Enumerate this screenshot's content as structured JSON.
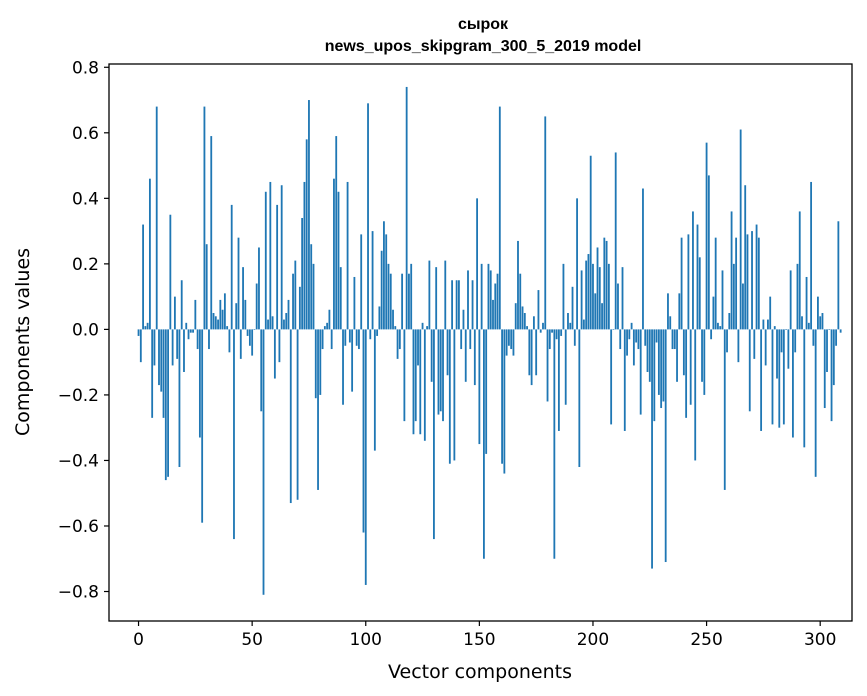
{
  "chart_data": {
    "type": "bar",
    "title": "сырок",
    "subtitle": "news_upos_skipgram_300_5_2019 model",
    "xlabel": "Vector components",
    "ylabel": "Components values",
    "xlim": [
      -13,
      314
    ],
    "ylim": [
      -0.89,
      0.81
    ],
    "xticks": [
      0,
      50,
      100,
      150,
      200,
      250,
      300
    ],
    "yticks": [
      -0.8,
      -0.6,
      -0.4,
      -0.2,
      0.0,
      0.2,
      0.4,
      0.6,
      0.8
    ],
    "ytick_labels": [
      "−0.8",
      "−0.6",
      "−0.4",
      "−0.2",
      "0.0",
      "0.2",
      "0.4",
      "0.6",
      "0.8"
    ],
    "bar_color": "#1f77b4",
    "grid": false,
    "values": [
      -0.02,
      -0.1,
      0.32,
      0.01,
      0.02,
      0.46,
      -0.27,
      -0.11,
      0.68,
      -0.17,
      -0.19,
      -0.27,
      -0.46,
      -0.45,
      0.35,
      -0.11,
      0.1,
      -0.09,
      -0.42,
      0.15,
      -0.13,
      0.02,
      -0.03,
      -0.01,
      -0.01,
      0.09,
      -0.06,
      -0.33,
      -0.59,
      0.68,
      0.26,
      -0.06,
      0.59,
      0.05,
      0.04,
      0.03,
      0.09,
      0.06,
      0.11,
      0.01,
      -0.07,
      0.38,
      -0.64,
      0.08,
      0.28,
      -0.09,
      0.19,
      0.09,
      -0.02,
      -0.05,
      -0.08,
      0.0,
      0.14,
      0.25,
      -0.25,
      -0.81,
      0.42,
      0.03,
      0.45,
      0.04,
      -0.15,
      0.38,
      -0.1,
      0.44,
      0.03,
      0.05,
      0.09,
      -0.53,
      0.17,
      0.21,
      -0.52,
      0.13,
      0.34,
      0.45,
      0.58,
      0.7,
      0.26,
      0.2,
      -0.21,
      -0.49,
      -0.2,
      -0.06,
      0.01,
      0.02,
      0.06,
      -0.06,
      0.46,
      0.59,
      0.42,
      0.19,
      -0.23,
      -0.05,
      0.45,
      -0.04,
      -0.19,
      0.16,
      -0.05,
      -0.06,
      0.29,
      -0.62,
      -0.78,
      0.69,
      -0.03,
      0.3,
      -0.37,
      -0.02,
      0.07,
      0.24,
      0.33,
      0.29,
      0.2,
      0.17,
      0.06,
      0.01,
      -0.09,
      -0.06,
      0.17,
      -0.28,
      0.74,
      0.17,
      0.2,
      -0.32,
      -0.28,
      -0.11,
      -0.32,
      0.02,
      -0.34,
      0.01,
      0.21,
      -0.16,
      -0.64,
      0.19,
      -0.26,
      -0.25,
      -0.28,
      0.21,
      -0.14,
      -0.41,
      0.15,
      -0.4,
      0.15,
      0.15,
      -0.06,
      0.06,
      -0.16,
      0.18,
      -0.06,
      0.15,
      -0.17,
      0.4,
      -0.35,
      0.2,
      -0.7,
      -0.38,
      0.2,
      0.18,
      0.09,
      0.14,
      0.17,
      0.68,
      -0.41,
      -0.44,
      -0.08,
      -0.05,
      -0.06,
      -0.08,
      0.08,
      0.27,
      0.17,
      0.07,
      0.05,
      0.01,
      -0.14,
      -0.17,
      0.04,
      -0.14,
      0.12,
      -0.01,
      0.02,
      0.65,
      -0.22,
      -0.06,
      -0.01,
      -0.7,
      -0.03,
      -0.31,
      -0.02,
      0.2,
      -0.23,
      0.05,
      0.02,
      0.13,
      -0.05,
      0.4,
      -0.42,
      0.18,
      0.03,
      0.21,
      0.23,
      0.53,
      0.2,
      0.11,
      0.25,
      0.19,
      0.08,
      0.28,
      0.27,
      0.2,
      -0.29,
      0.0,
      0.54,
      0.14,
      -0.06,
      0.19,
      -0.31,
      -0.08,
      -0.03,
      0.02,
      -0.11,
      -0.04,
      -0.06,
      -0.26,
      0.43,
      -0.05,
      -0.13,
      -0.16,
      -0.73,
      -0.28,
      -0.04,
      -0.2,
      -0.24,
      -0.22,
      -0.71,
      0.11,
      0.04,
      -0.06,
      -0.06,
      -0.16,
      0.11,
      0.28,
      -0.14,
      -0.27,
      0.29,
      -0.23,
      0.36,
      -0.4,
      0.32,
      0.22,
      -0.16,
      -0.2,
      0.57,
      0.47,
      -0.03,
      0.1,
      0.28,
      0.02,
      0.01,
      0.18,
      -0.49,
      -0.07,
      0.05,
      0.36,
      0.2,
      0.28,
      -0.1,
      0.61,
      0.14,
      0.44,
      0.29,
      -0.25,
      0.3,
      -0.09,
      0.32,
      0.28,
      -0.31,
      0.03,
      -0.11,
      0.03,
      0.1,
      -0.29,
      0.01,
      -0.15,
      -0.3,
      -0.07,
      -0.29,
      0.0,
      -0.12,
      0.18,
      -0.33,
      -0.07,
      0.2,
      0.36,
      0.04,
      -0.36,
      0.16,
      0.02,
      0.45,
      -0.05,
      -0.45,
      0.1,
      0.04,
      0.05,
      -0.24,
      -0.13,
      0.0,
      -0.28,
      -0.17,
      -0.05,
      0.33,
      -0.01
    ]
  }
}
